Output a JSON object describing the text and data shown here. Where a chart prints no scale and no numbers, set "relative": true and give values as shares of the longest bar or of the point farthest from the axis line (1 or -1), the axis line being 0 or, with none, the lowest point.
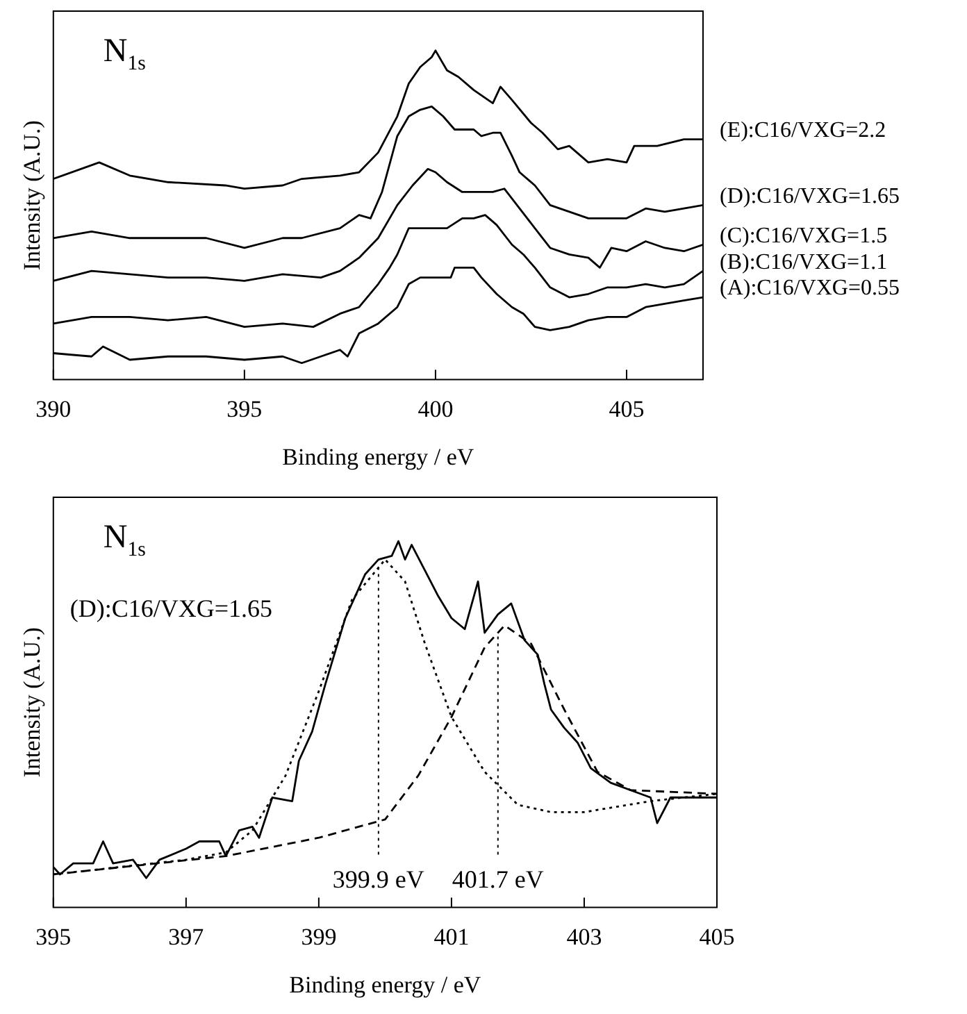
{
  "chart_data": [
    {
      "type": "line",
      "title": "N$_{1s}$",
      "xlabel": "Binding energy / eV",
      "ylabel": "Intensity (A.U.)",
      "relative": true,
      "xlim": [
        390,
        407
      ],
      "xticks": [
        390,
        395,
        400,
        405
      ],
      "grid": false,
      "line_style": "solid",
      "series": [
        {
          "name": "(E):C16/VXG=2.2",
          "color": "#000000",
          "x": [
            390,
            391.2,
            392,
            393,
            394.5,
            395,
            396,
            396.5,
            397.5,
            398,
            398.5,
            399,
            399.3,
            399.6,
            399.9,
            400,
            400.3,
            400.6,
            401,
            401.5,
            401.7,
            402,
            402.5,
            402.8,
            403.2,
            403.5,
            404,
            404.5,
            405,
            405.2,
            405.8,
            406.5,
            407
          ],
          "values": [
            0.61,
            0.66,
            0.62,
            0.6,
            0.59,
            0.58,
            0.59,
            0.61,
            0.62,
            0.63,
            0.69,
            0.8,
            0.9,
            0.95,
            0.98,
            1,
            0.94,
            0.92,
            0.88,
            0.84,
            0.89,
            0.85,
            0.78,
            0.75,
            0.7,
            0.71,
            0.66,
            0.67,
            0.66,
            0.71,
            0.71,
            0.73,
            0.73
          ]
        },
        {
          "name": "(D):C16/VXG=1.65",
          "color": "#000000",
          "x": [
            390,
            391,
            392,
            393,
            394,
            395,
            396,
            396.5,
            397.5,
            398,
            398.3,
            398.6,
            399,
            399.3,
            399.6,
            399.9,
            400.2,
            400.5,
            401,
            401.2,
            401.5,
            401.7,
            402,
            402.2,
            402.6,
            403,
            403.5,
            404,
            404.5,
            405,
            405.5,
            406,
            406.5,
            407
          ],
          "values": [
            0.43,
            0.45,
            0.43,
            0.43,
            0.43,
            0.4,
            0.43,
            0.43,
            0.46,
            0.5,
            0.49,
            0.57,
            0.74,
            0.8,
            0.82,
            0.83,
            0.8,
            0.76,
            0.76,
            0.74,
            0.75,
            0.75,
            0.68,
            0.63,
            0.59,
            0.53,
            0.51,
            0.49,
            0.49,
            0.49,
            0.52,
            0.51,
            0.52,
            0.53
          ]
        },
        {
          "name": "(C):C16/VXG=1.5",
          "color": "#000000",
          "x": [
            390,
            391,
            392,
            393,
            394,
            395,
            396,
            397,
            397.5,
            398,
            398.5,
            399,
            399.4,
            399.8,
            400,
            400.3,
            400.7,
            401,
            401.5,
            401.8,
            402.2,
            402.6,
            403,
            403.5,
            404,
            404.3,
            404.6,
            405,
            405.5,
            406,
            406.5,
            407
          ],
          "values": [
            0.3,
            0.33,
            0.32,
            0.31,
            0.31,
            0.3,
            0.32,
            0.31,
            0.33,
            0.37,
            0.43,
            0.53,
            0.59,
            0.64,
            0.63,
            0.6,
            0.57,
            0.57,
            0.57,
            0.58,
            0.52,
            0.46,
            0.4,
            0.38,
            0.37,
            0.34,
            0.4,
            0.39,
            0.42,
            0.4,
            0.39,
            0.41
          ]
        },
        {
          "name": "(B):C16/VXG=1.1",
          "color": "#000000",
          "x": [
            390,
            391,
            392,
            393,
            394,
            395,
            396,
            396.8,
            397.5,
            398,
            398.5,
            398.8,
            399,
            399.3,
            399.6,
            400,
            400.3,
            400.7,
            401,
            401.3,
            401.6,
            402,
            402.3,
            402.6,
            403,
            403.5,
            404,
            404.5,
            405,
            405.5,
            406,
            406.5,
            407
          ],
          "values": [
            0.17,
            0.19,
            0.19,
            0.18,
            0.19,
            0.16,
            0.17,
            0.16,
            0.2,
            0.22,
            0.29,
            0.34,
            0.38,
            0.46,
            0.46,
            0.46,
            0.46,
            0.49,
            0.49,
            0.5,
            0.47,
            0.41,
            0.38,
            0.34,
            0.28,
            0.25,
            0.26,
            0.28,
            0.28,
            0.29,
            0.28,
            0.29,
            0.33
          ]
        },
        {
          "name": "(A):C16/VXG=0.55",
          "color": "#000000",
          "x": [
            390,
            391,
            391.3,
            392,
            393,
            394,
            395,
            396,
            396.5,
            397,
            397.5,
            397.7,
            398,
            398.5,
            399,
            399.3,
            399.6,
            400,
            400.4,
            400.5,
            401,
            401.2,
            401.6,
            402,
            402.3,
            402.6,
            403,
            403.5,
            404,
            404.5,
            405,
            405.5,
            406,
            406.5,
            407
          ],
          "values": [
            0.08,
            0.07,
            0.1,
            0.06,
            0.07,
            0.07,
            0.06,
            0.07,
            0.05,
            0.07,
            0.09,
            0.07,
            0.14,
            0.17,
            0.22,
            0.29,
            0.31,
            0.31,
            0.31,
            0.34,
            0.34,
            0.31,
            0.26,
            0.22,
            0.2,
            0.16,
            0.15,
            0.16,
            0.18,
            0.19,
            0.19,
            0.22,
            0.23,
            0.24,
            0.25
          ]
        }
      ]
    },
    {
      "type": "line",
      "title": "N$_{1s}$",
      "xlabel": "Binding energy / eV",
      "ylabel": "Intensity (A.U.)",
      "relative": true,
      "xlim": [
        395,
        405
      ],
      "xticks": [
        395,
        397,
        399,
        401,
        403,
        405
      ],
      "grid": false,
      "annotations": [
        "(D):C16/VXG=1.65"
      ],
      "ref_lines": [
        {
          "axis": "x",
          "value": 399.9,
          "label": "399.9 eV",
          "line_style": "dotted"
        },
        {
          "axis": "x",
          "value": 401.7,
          "label": "401.7 eV",
          "line_style": "dotted"
        }
      ],
      "series": [
        {
          "color": "#000000",
          "line_style": "solid",
          "x": [
            395,
            395.1,
            395.3,
            395.6,
            395.75,
            395.9,
            396.2,
            396.4,
            396.6,
            397,
            397.2,
            397.5,
            397.6,
            397.8,
            398,
            398.1,
            398.3,
            398.6,
            398.7,
            398.9,
            399.1,
            399.4,
            399.7,
            399.9,
            400.1,
            400.2,
            400.3,
            400.4,
            400.6,
            400.8,
            401,
            401.2,
            401.4,
            401.5,
            401.7,
            401.9,
            402.1,
            402.3,
            402.4,
            402.5,
            402.7,
            402.9,
            403.1,
            403.4,
            403.7,
            404,
            404.1,
            404.3,
            404.6,
            405
          ],
          "values": [
            0.11,
            0.09,
            0.12,
            0.12,
            0.18,
            0.12,
            0.13,
            0.08,
            0.13,
            0.16,
            0.18,
            0.18,
            0.14,
            0.21,
            0.22,
            0.19,
            0.3,
            0.29,
            0.4,
            0.48,
            0.61,
            0.79,
            0.91,
            0.95,
            0.96,
            1,
            0.95,
            0.99,
            0.92,
            0.85,
            0.79,
            0.76,
            0.89,
            0.75,
            0.8,
            0.83,
            0.73,
            0.69,
            0.61,
            0.54,
            0.49,
            0.45,
            0.38,
            0.34,
            0.32,
            0.3,
            0.23,
            0.3,
            0.3,
            0.3
          ]
        },
        {
          "color": "#000000",
          "line_style": "dotted",
          "x": [
            395,
            396,
            397,
            397.6,
            398,
            398.5,
            399,
            399.5,
            400,
            400.3,
            400.6,
            401,
            401.5,
            402,
            402.5,
            403,
            404,
            405
          ],
          "values": [
            0.09,
            0.11,
            0.13,
            0.15,
            0.21,
            0.36,
            0.59,
            0.84,
            0.95,
            0.89,
            0.72,
            0.52,
            0.37,
            0.28,
            0.26,
            0.26,
            0.29,
            0.31
          ]
        },
        {
          "color": "#000000",
          "line_style": "dashed",
          "x": [
            395,
            397.6,
            399,
            400,
            400.5,
            401,
            401.5,
            401.8,
            402.2,
            402.7,
            403.2,
            403.7,
            405
          ],
          "values": [
            0.09,
            0.14,
            0.19,
            0.24,
            0.36,
            0.52,
            0.71,
            0.77,
            0.72,
            0.54,
            0.37,
            0.32,
            0.31
          ]
        }
      ]
    }
  ]
}
